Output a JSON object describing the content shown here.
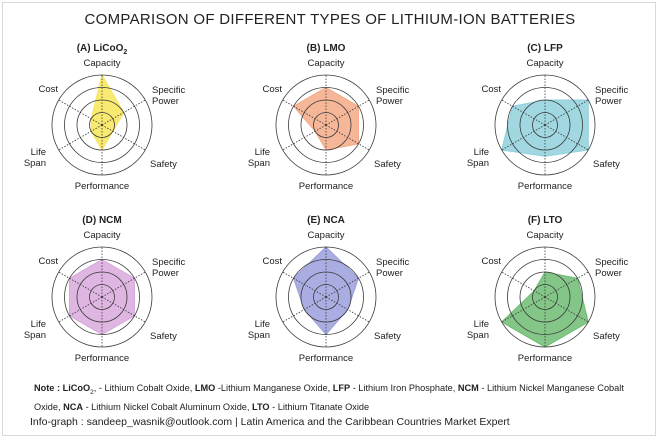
{
  "title": "COMPARISON OF DIFFERENT TYPES OF LITHIUM-ION BATTERIES",
  "chart_data": {
    "type": "radar",
    "axes": [
      "Capacity",
      "Specific Power",
      "Safety",
      "Performance",
      "Life Span",
      "Cost"
    ],
    "scale": [
      0,
      4
    ],
    "rings": 4,
    "charts": [
      {
        "id": "A",
        "title": "(A) LiCoO",
        "title_sub": "2",
        "color": "#f7e658",
        "values": [
          4,
          2,
          1,
          2,
          1,
          1
        ]
      },
      {
        "id": "B",
        "title": "(B) LMO",
        "color": "#f3aa86",
        "values": [
          3,
          3,
          3,
          2,
          1,
          3
        ]
      },
      {
        "id": "C",
        "title": "(C) LFP",
        "color": "#8fd0dc",
        "values": [
          2,
          4,
          4,
          2.5,
          4,
          3
        ]
      },
      {
        "id": "D",
        "title": "(D) NCM",
        "color": "#d9a9dc",
        "values": [
          3,
          3,
          3,
          3,
          3,
          3
        ]
      },
      {
        "id": "E",
        "title": "(E) NCA",
        "color": "#9b9fdc",
        "values": [
          4,
          3,
          2,
          3,
          2,
          3
        ]
      },
      {
        "id": "F",
        "title": "(F) LTO",
        "color": "#6fbc72",
        "values": [
          2,
          3,
          4,
          4,
          4,
          1
        ]
      }
    ]
  },
  "note": {
    "prefix": "Note : ",
    "licoo": "LiCoO",
    "licoo_sub": "2",
    "t1": ", - Lithium Cobalt Oxide, ",
    "lmo": "LMO",
    "t2": " -Lithium Manganese Oxide, ",
    "lfp": "LFP",
    "t3": " - Lithium Iron Phosphate, ",
    "ncm": "NCM",
    "t4": " - Lithium Nickel Manganese Cobalt Oxide, ",
    "nca": "NCA",
    "t5": " - Lithium Nickel Cobalt Aluminum Oxide, ",
    "lto": "LTO",
    "t6": " - Lithium Titanate Oxide"
  },
  "credit": "Info-graph : sandeep_wasnik@outlook.com | Latin America and the Caribbean Countries Market Expert"
}
